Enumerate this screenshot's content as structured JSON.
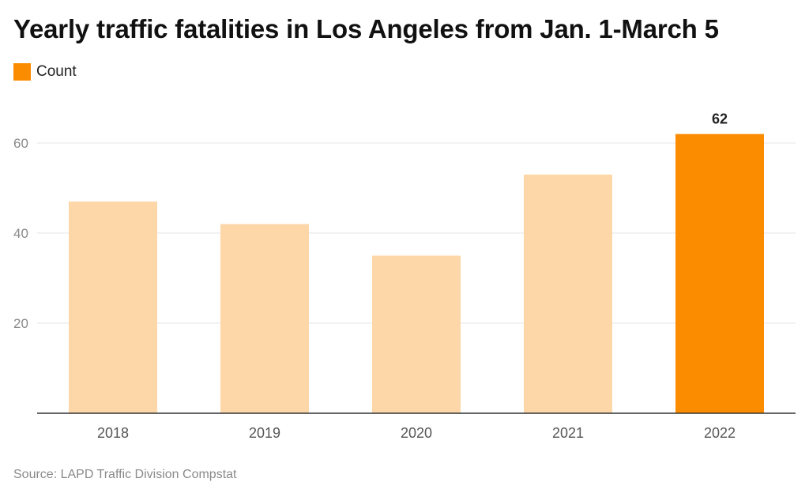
{
  "chart_data": {
    "type": "bar",
    "title": "Yearly traffic fatalities in Los Angeles from Jan. 1-March 5",
    "categories": [
      "2018",
      "2019",
      "2020",
      "2021",
      "2022"
    ],
    "series": [
      {
        "name": "Count",
        "values": [
          47,
          42,
          35,
          53,
          62
        ]
      }
    ],
    "highlight_index": 4,
    "data_labels": [
      {
        "category": "2022",
        "text": "62"
      }
    ],
    "yticks": [
      "20",
      "40",
      "60"
    ],
    "ylim": [
      0,
      70
    ],
    "grid": true,
    "legend_position": "top-left",
    "colors": {
      "bar": "#fdd7a8",
      "highlight": "#fb8c00",
      "grid": "#e6e6e6",
      "axis": "#333333",
      "tick_label": "#8a8a8a"
    },
    "source": "Source: LAPD Traffic Division Compstat"
  }
}
